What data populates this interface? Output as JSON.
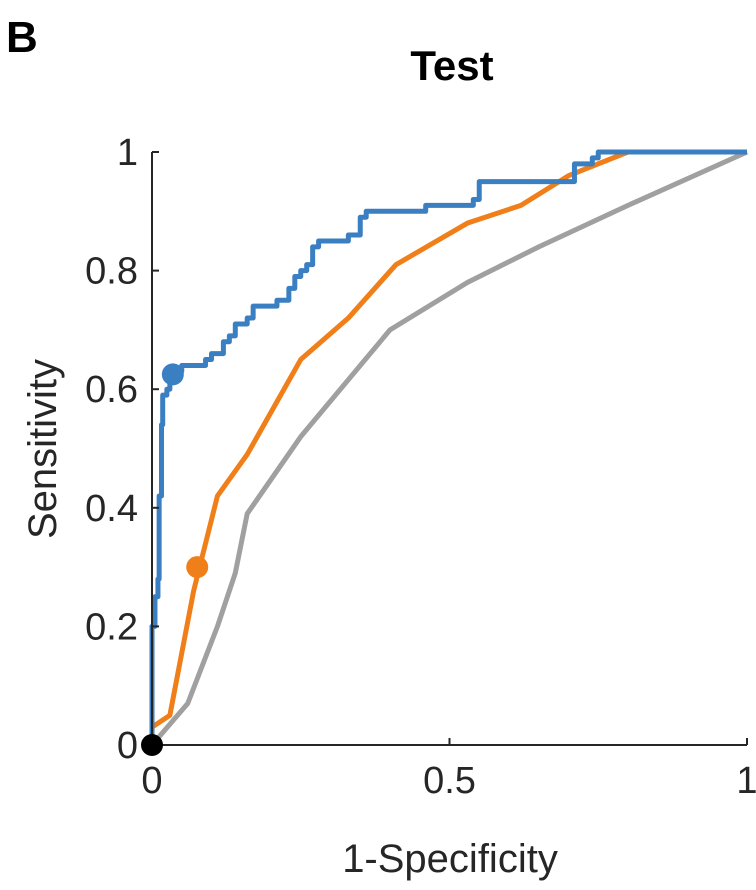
{
  "panel_label": "B",
  "chart_data": {
    "type": "line",
    "title": "Test",
    "xlabel": "1-Specificity",
    "ylabel": "Sensitivity",
    "xlim": [
      0,
      1
    ],
    "ylim": [
      0,
      1
    ],
    "xticks": [
      0,
      0.5,
      1
    ],
    "xtick_labels": [
      "0",
      "0.5",
      "1"
    ],
    "yticks": [
      0,
      0.2,
      0.4,
      0.6,
      0.8,
      1
    ],
    "ytick_labels": [
      "0",
      "0.2",
      "0.4",
      "0.6",
      "0.8",
      "1"
    ],
    "grid": false,
    "legend": "none",
    "series": [
      {
        "color": "#a0a0a0",
        "step": false,
        "x": [
          0,
          0.06,
          0.11,
          0.14,
          0.16,
          0.25,
          0.4,
          0.53,
          0.65,
          0.8,
          1.0
        ],
        "y": [
          0,
          0.07,
          0.2,
          0.29,
          0.39,
          0.52,
          0.7,
          0.78,
          0.84,
          0.91,
          1.0
        ],
        "marker": {
          "x": 0,
          "y": 0,
          "color": "#000000"
        }
      },
      {
        "color": "#f07f19",
        "step": false,
        "x": [
          0,
          0.03,
          0.07,
          0.11,
          0.16,
          0.25,
          0.33,
          0.41,
          0.53,
          0.62,
          0.7,
          0.8,
          1.0
        ],
        "y": [
          0.03,
          0.05,
          0.26,
          0.42,
          0.49,
          0.65,
          0.72,
          0.81,
          0.88,
          0.91,
          0.96,
          1.0,
          1.0
        ],
        "marker": {
          "x": 0.076,
          "y": 0.3,
          "color": "#f07f19"
        }
      },
      {
        "color": "#3a7fc2",
        "step": true,
        "x": [
          0,
          0,
          0.005,
          0.01,
          0.012,
          0.016,
          0.018,
          0.025,
          0.03,
          0.04,
          0.05,
          0.09,
          0.1,
          0.12,
          0.13,
          0.14,
          0.16,
          0.17,
          0.18,
          0.21,
          0.23,
          0.24,
          0.25,
          0.26,
          0.27,
          0.28,
          0.3,
          0.33,
          0.35,
          0.36,
          0.45,
          0.46,
          0.54,
          0.55,
          0.7,
          0.71,
          0.74,
          0.75,
          1.0
        ],
        "y": [
          0,
          0.2,
          0.25,
          0.28,
          0.42,
          0.54,
          0.59,
          0.6,
          0.62,
          0.63,
          0.64,
          0.65,
          0.66,
          0.68,
          0.69,
          0.71,
          0.72,
          0.74,
          0.74,
          0.75,
          0.77,
          0.79,
          0.8,
          0.81,
          0.84,
          0.85,
          0.85,
          0.86,
          0.89,
          0.9,
          0.9,
          0.91,
          0.92,
          0.95,
          0.95,
          0.98,
          0.99,
          1.0,
          1.0
        ],
        "marker": {
          "x": 0.035,
          "y": 0.625,
          "color": "#3a7fc2"
        }
      }
    ]
  }
}
